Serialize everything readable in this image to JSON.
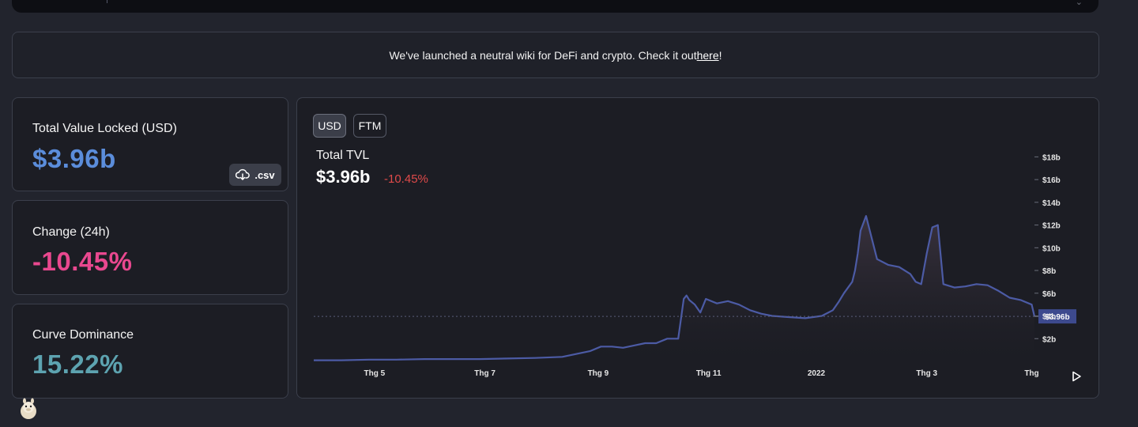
{
  "banner": {
    "text": "We've launched a neutral wiki for DeFi and crypto. Check it out ",
    "link_text": "here",
    "suffix": "!"
  },
  "cards": {
    "tvl": {
      "label": "Total Value Locked (USD)",
      "value": "$3.96b",
      "color": "#5b8ddb"
    },
    "change": {
      "label": "Change (24h)",
      "value": "-10.45%",
      "color": "#e9488f"
    },
    "dominance": {
      "label": "Curve Dominance",
      "value": "15.22%",
      "color": "#5da3b0"
    },
    "csv_label": ".csv"
  },
  "chart": {
    "toggles": [
      "USD",
      "FTM"
    ],
    "active_toggle": "USD",
    "title": "Total TVL",
    "value": "$3.96b",
    "change": "-10.45%"
  },
  "chart_data": {
    "type": "area",
    "title": "Total TVL",
    "series_color": "#4c5ba5",
    "y_ticks": [
      "$2b",
      "$4b",
      "$6b",
      "$8b",
      "$10b",
      "$12b",
      "$14b",
      "$16b",
      "$18b"
    ],
    "y_tick_values": [
      2,
      4,
      6,
      8,
      10,
      12,
      14,
      16,
      18
    ],
    "x_ticks": [
      "Thg 5",
      "Thg 7",
      "Thg 9",
      "Thg 11",
      "2022",
      "Thg 3",
      "Thg"
    ],
    "x_tick_positions": [
      4.1,
      6.1,
      8.15,
      10.15,
      12.1,
      14.1,
      16.0
    ],
    "current_label": "$3.96b",
    "current_value": 3.96,
    "x": [
      3.0,
      3.5,
      4.0,
      4.5,
      5.0,
      5.5,
      6.0,
      6.5,
      7.0,
      7.5,
      8.0,
      8.2,
      8.4,
      8.6,
      8.8,
      9.0,
      9.2,
      9.4,
      9.6,
      9.7,
      9.75,
      9.8,
      9.9,
      10.0,
      10.1,
      10.3,
      10.5,
      10.7,
      10.9,
      11.1,
      11.3,
      11.6,
      11.9,
      12.2,
      12.4,
      12.5,
      12.6,
      12.75,
      12.8,
      12.85,
      12.9,
      13.0,
      13.2,
      13.4,
      13.6,
      13.8,
      13.9,
      14.0,
      14.1,
      14.2,
      14.3,
      14.4,
      14.6,
      14.8,
      15.0,
      15.2,
      15.4,
      15.6,
      15.8,
      16.0,
      16.05
    ],
    "y": [
      0.1,
      0.1,
      0.15,
      0.15,
      0.2,
      0.2,
      0.2,
      0.25,
      0.3,
      0.4,
      0.9,
      1.3,
      1.3,
      1.2,
      1.4,
      1.6,
      1.6,
      2.0,
      2.0,
      5.5,
      5.8,
      5.4,
      5.0,
      4.3,
      5.5,
      5.1,
      5.3,
      5.0,
      4.5,
      4.2,
      4.0,
      3.9,
      3.8,
      4.0,
      4.5,
      5.2,
      6.0,
      7.0,
      8.0,
      9.5,
      11.5,
      12.8,
      9.0,
      8.5,
      8.3,
      7.7,
      7.0,
      6.8,
      9.5,
      11.8,
      12.0,
      6.8,
      6.5,
      6.6,
      6.8,
      6.7,
      6.2,
      5.6,
      5.4,
      5.0,
      3.96
    ],
    "xlim": [
      3.0,
      16.05
    ],
    "ylim": [
      0,
      19
    ]
  }
}
